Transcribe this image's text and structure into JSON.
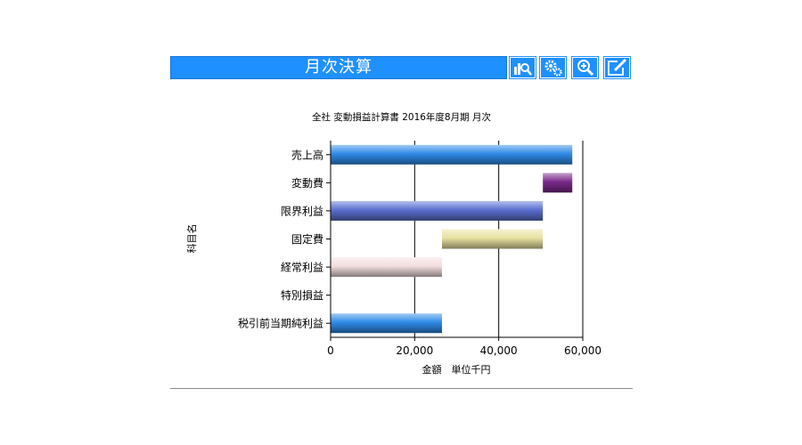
{
  "header": {
    "title": "月次決算",
    "buttons": [
      {
        "icon": "chart-search-icon"
      },
      {
        "icon": "gears-icon"
      },
      {
        "icon": "zoom-in-icon"
      },
      {
        "icon": "edit-icon"
      }
    ],
    "accent_color": "#1e90ff"
  },
  "chart_data": {
    "type": "waterfall-bar",
    "title": "全社 変動損益計算書 2016年度8月期 月次",
    "xlabel": "金額　単位千円",
    "ylabel": "科目名",
    "xlim": [
      0,
      60000
    ],
    "xticks": [
      0,
      20000,
      40000,
      60000
    ],
    "xtick_labels": [
      "0",
      "20,000",
      "40,000",
      "60,000"
    ],
    "grid": true,
    "categories": [
      "売上高",
      "変動費",
      "限界利益",
      "固定費",
      "経常利益",
      "特別損益",
      "税引前当期純利益"
    ],
    "bars": [
      {
        "label": "売上高",
        "start": 0,
        "end": 57500,
        "color": "#2f8be8"
      },
      {
        "label": "変動費",
        "start": 50500,
        "end": 57500,
        "color": "#7a2a8a"
      },
      {
        "label": "限界利益",
        "start": 0,
        "end": 50500,
        "color": "#5b6fd0"
      },
      {
        "label": "固定費",
        "start": 26500,
        "end": 50500,
        "color": "#e8e2a0"
      },
      {
        "label": "経常利益",
        "start": 0,
        "end": 26500,
        "color": "#f4dede"
      },
      {
        "label": "特別損益",
        "start": 0,
        "end": 0,
        "color": "#2f8be8"
      },
      {
        "label": "税引前当期純利益",
        "start": 0,
        "end": 26500,
        "color": "#2f8be8"
      }
    ]
  }
}
